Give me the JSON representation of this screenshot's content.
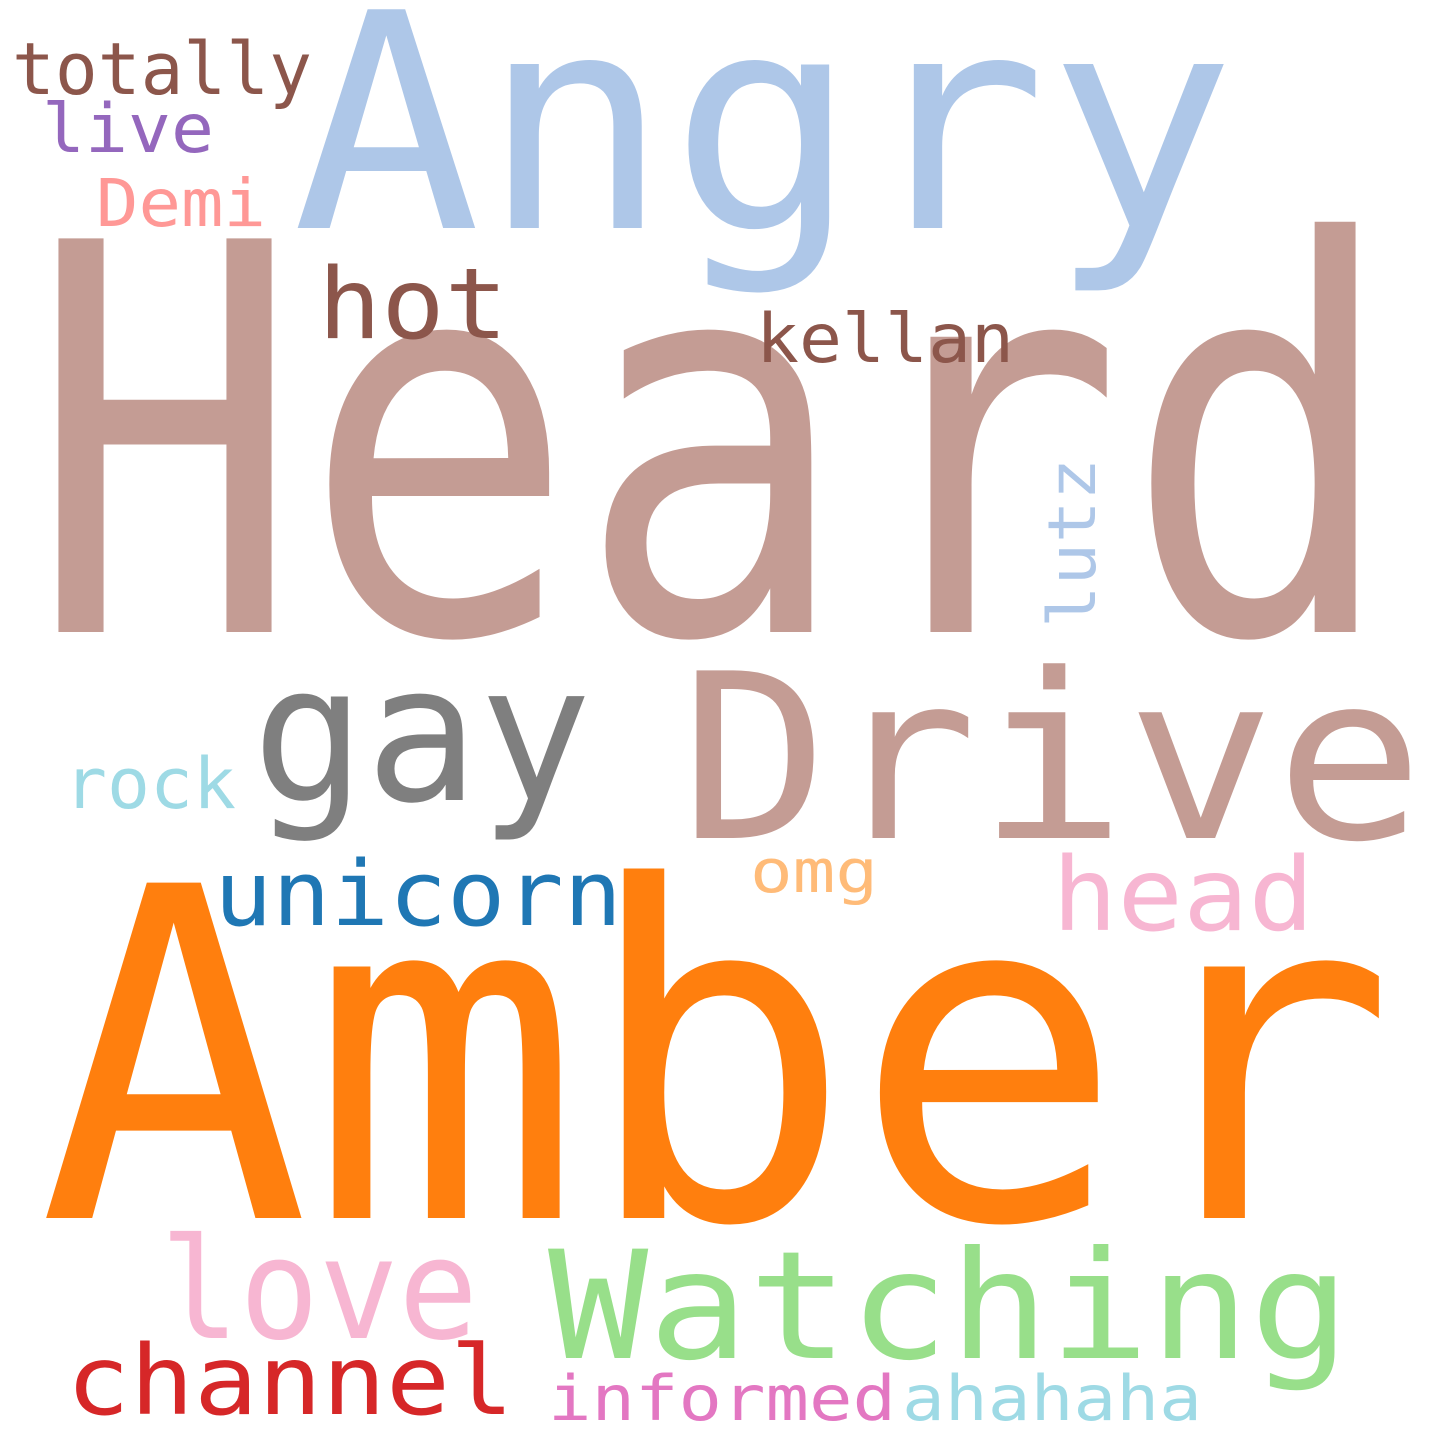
{
  "words": [
    {
      "id": "heard",
      "text": "Heard",
      "color": "#c49c94"
    },
    {
      "id": "amber",
      "text": "Amber",
      "color": "#ff7f0e"
    },
    {
      "id": "angry",
      "text": "Angry",
      "color": "#aec7e8"
    },
    {
      "id": "drive",
      "text": "Drive",
      "color": "#c49c94"
    },
    {
      "id": "gay",
      "text": "gay",
      "color": "#7f7f7f"
    },
    {
      "id": "watching",
      "text": "Watching",
      "color": "#98df8a"
    },
    {
      "id": "love",
      "text": "love",
      "color": "#f7b6d2"
    },
    {
      "id": "channel",
      "text": "channel",
      "color": "#d62728"
    },
    {
      "id": "unicorn",
      "text": "unicorn",
      "color": "#1f77b4"
    },
    {
      "id": "head",
      "text": "head",
      "color": "#f7b6d2"
    },
    {
      "id": "hot",
      "text": "hot",
      "color": "#8c564b"
    },
    {
      "id": "totally",
      "text": "totally",
      "color": "#8c564b"
    },
    {
      "id": "kellan",
      "text": "kellan",
      "color": "#8c564b"
    },
    {
      "id": "live",
      "text": "live",
      "color": "#9467bd"
    },
    {
      "id": "demi",
      "text": "Demi",
      "color": "#ff9896"
    },
    {
      "id": "lutz",
      "text": "lutz",
      "color": "#aec7e8"
    },
    {
      "id": "rock",
      "text": "rock",
      "color": "#9edae5"
    },
    {
      "id": "omg",
      "text": "omg",
      "color": "#ffbb78"
    },
    {
      "id": "informed",
      "text": "informed",
      "color": "#e377c2"
    },
    {
      "id": "ahahaha",
      "text": "ahahaha",
      "color": "#9edae5"
    }
  ]
}
